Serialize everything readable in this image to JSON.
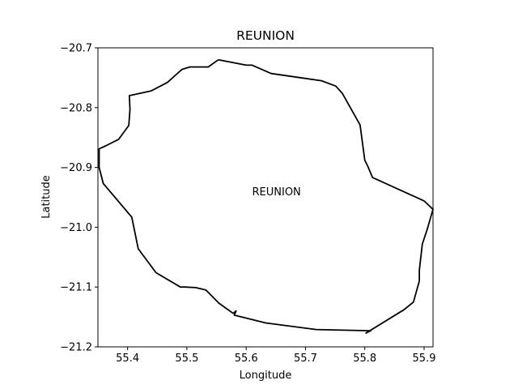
{
  "title": "REUNION",
  "chart_data": {
    "type": "line",
    "title": "REUNION",
    "xlabel": "Longitude",
    "ylabel": "Latitude",
    "xlim": [
      55.35,
      55.915
    ],
    "ylim": [
      -21.2,
      -20.7
    ],
    "x_ticks": [
      55.4,
      55.5,
      55.6,
      55.7,
      55.8,
      55.9
    ],
    "x_tick_labels": [
      "55.4",
      "55.5",
      "55.6",
      "55.7",
      "55.8",
      "55.9"
    ],
    "y_ticks": [
      -21.2,
      -21.1,
      -21.0,
      -20.9,
      -20.8,
      -20.7
    ],
    "y_tick_labels": [
      "−21.2",
      "−21.1",
      "−21.0",
      "−20.9",
      "−20.8",
      "−20.7"
    ],
    "grid": false,
    "annotation": {
      "text": "REUNION",
      "x": 55.61,
      "y": -20.94
    },
    "outline_color": "#000000",
    "series": [
      {
        "x": [
          55.553,
          55.6,
          55.61,
          55.642,
          55.727,
          55.751,
          55.762,
          55.792,
          55.8,
          55.805,
          55.813,
          55.9,
          55.915,
          55.905,
          55.897,
          55.892,
          55.892,
          55.882,
          55.866,
          55.802,
          55.81,
          55.718,
          55.633,
          55.58,
          55.583,
          55.578,
          55.554,
          55.532,
          55.515,
          55.497,
          55.489,
          55.448,
          55.418,
          55.407,
          55.359,
          55.352,
          55.352,
          55.363,
          55.385,
          55.402,
          55.404,
          55.403,
          55.44,
          55.467,
          55.485,
          55.492,
          55.505,
          55.536,
          55.553
        ],
        "y": [
          -20.72,
          -20.729,
          -20.729,
          -20.743,
          -20.755,
          -20.764,
          -20.776,
          -20.829,
          -20.888,
          -20.898,
          -20.917,
          -20.956,
          -20.97,
          -21.004,
          -21.028,
          -21.072,
          -21.09,
          -21.125,
          -21.138,
          -21.177,
          -21.173,
          -21.171,
          -21.16,
          -21.147,
          -21.14,
          -21.144,
          -21.127,
          -21.105,
          -21.101,
          -21.1,
          -21.1,
          -21.076,
          -21.036,
          -20.983,
          -20.927,
          -20.9,
          -20.869,
          -20.864,
          -20.853,
          -20.83,
          -20.803,
          -20.78,
          -20.772,
          -20.758,
          -20.742,
          -20.736,
          -20.732,
          -20.732,
          -20.72
        ]
      }
    ]
  }
}
